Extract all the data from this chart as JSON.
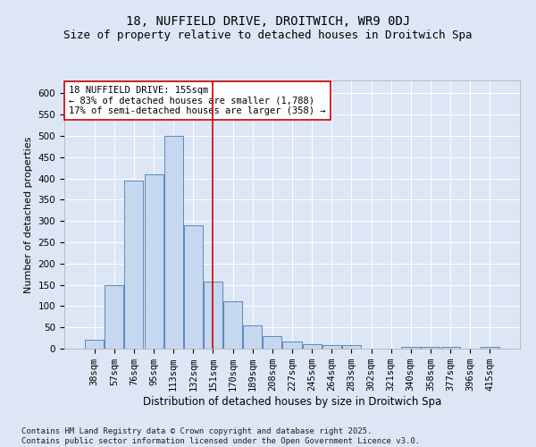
{
  "title1": "18, NUFFIELD DRIVE, DROITWICH, WR9 0DJ",
  "title2": "Size of property relative to detached houses in Droitwich Spa",
  "xlabel": "Distribution of detached houses by size in Droitwich Spa",
  "ylabel": "Number of detached properties",
  "categories": [
    "38sqm",
    "57sqm",
    "76sqm",
    "95sqm",
    "113sqm",
    "132sqm",
    "151sqm",
    "170sqm",
    "189sqm",
    "208sqm",
    "227sqm",
    "245sqm",
    "264sqm",
    "283sqm",
    "302sqm",
    "321sqm",
    "340sqm",
    "358sqm",
    "377sqm",
    "396sqm",
    "415sqm"
  ],
  "values": [
    22,
    150,
    395,
    410,
    500,
    290,
    158,
    112,
    55,
    30,
    16,
    10,
    8,
    8,
    0,
    0,
    4,
    5,
    5,
    0,
    4
  ],
  "bar_color": "#c5d8f0",
  "bar_edge_color": "#4a7ab5",
  "vline_x": 6,
  "vline_color": "#cc0000",
  "annotation_text": "18 NUFFIELD DRIVE: 155sqm\n← 83% of detached houses are smaller (1,788)\n17% of semi-detached houses are larger (358) →",
  "annotation_box_color": "#ffffff",
  "annotation_box_edge": "#cc0000",
  "ylim": [
    0,
    630
  ],
  "yticks": [
    0,
    50,
    100,
    150,
    200,
    250,
    300,
    350,
    400,
    450,
    500,
    550,
    600
  ],
  "background_color": "#dde6f5",
  "fig_background_color": "#dde6f5",
  "footer_text": "Contains HM Land Registry data © Crown copyright and database right 2025.\nContains public sector information licensed under the Open Government Licence v3.0.",
  "title1_fontsize": 10,
  "title2_fontsize": 9,
  "xlabel_fontsize": 8.5,
  "ylabel_fontsize": 8,
  "tick_fontsize": 7.5,
  "annotation_fontsize": 7.5,
  "footer_fontsize": 6.5
}
